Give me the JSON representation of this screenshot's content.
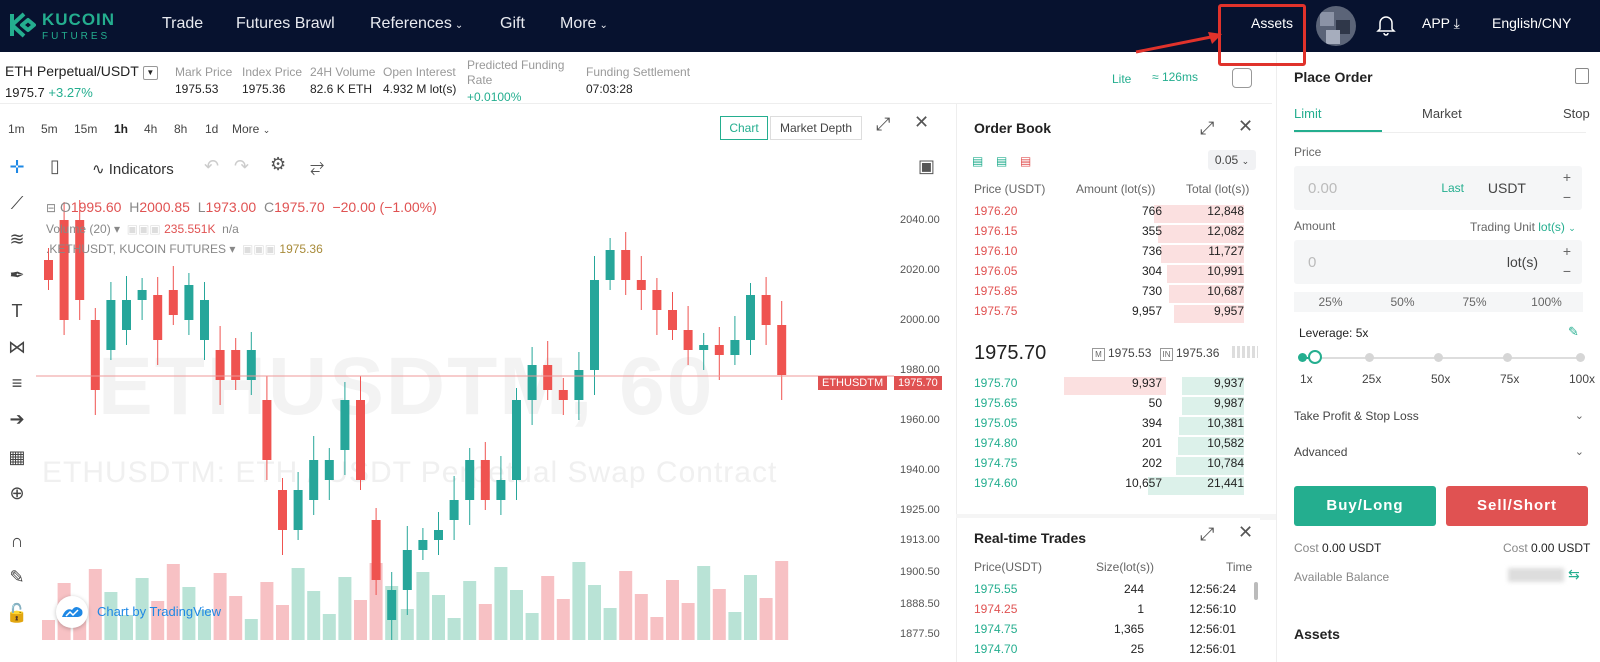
{
  "brand": {
    "line1": "KUCOIN",
    "line2": "FUTURES",
    "color": "#24ae8f"
  },
  "nav": [
    {
      "label": "Trade"
    },
    {
      "label": "Futures Brawl"
    },
    {
      "label": "References",
      "dropdown": true
    },
    {
      "label": "Gift"
    },
    {
      "label": "More",
      "dropdown": true
    }
  ],
  "top_right": {
    "assets": "Assets",
    "app": "APP",
    "lang": "English/CNY"
  },
  "ticker": {
    "symbol": "ETH Perpetual",
    "quote": "/USDT",
    "last": "1975.7",
    "change": "+3.27%",
    "stats": [
      {
        "label": "Mark Price",
        "value": "1975.53"
      },
      {
        "label": "Index Price",
        "value": "1975.36"
      },
      {
        "label": "24H Volume",
        "value": "82.6 K ETH"
      },
      {
        "label": "Open Interest",
        "value": "4.932 M lot(s)"
      },
      {
        "label": "Predicted Funding Rate",
        "value": "+0.0100%"
      },
      {
        "label": "Funding Settlement",
        "value": "07:03:28"
      }
    ],
    "mode": "Lite",
    "latency": "126ms"
  },
  "timeframes": [
    "1m",
    "5m",
    "15m",
    "1h",
    "4h",
    "8h",
    "1d",
    "More"
  ],
  "active_timeframe": "1h",
  "chart_tabs": {
    "chart": "Chart",
    "depth": "Market Depth"
  },
  "indicators_label": "Indicators",
  "ohlc": {
    "O": "1995.60",
    "H": "2000.85",
    "L": "1973.00",
    "C": "1975.70",
    "chg": "−20.00 (−1.00%)"
  },
  "volume_label": "Volume (20)",
  "volume_value": "235.551K",
  "volume_na": "n/a",
  "index_label": ".KETHUSDT, KUCOIN FUTURES",
  "index_value": "1975.36",
  "watermark": {
    "big": "ETHUSDTM, 60",
    "sub": "ETHUSDTM: ETH / USDT Perpetual Swap Contract"
  },
  "tv_credit": "Chart by TradingView",
  "price_label": "ETHUSDTM",
  "price_label_value": "1975.70",
  "y_axis": [
    "2040.00",
    "2020.00",
    "2000.00",
    "1980.00",
    "1960.00",
    "1940.00",
    "1925.00",
    "1913.00",
    "1900.50",
    "1888.50",
    "1877.50"
  ],
  "order_book": {
    "title": "Order Book",
    "decimal": "0.05",
    "headers": [
      "Price (USDT)",
      "Amount (lot(s))",
      "Total (lot(s))"
    ],
    "asks": [
      {
        "p": "1976.20",
        "a": "766",
        "t": "12,848",
        "d": 0.94
      },
      {
        "p": "1976.15",
        "a": "355",
        "t": "12,082",
        "d": 0.9
      },
      {
        "p": "1976.10",
        "a": "736",
        "t": "11,727",
        "d": 0.86
      },
      {
        "p": "1976.05",
        "a": "304",
        "t": "10,991",
        "d": 0.8
      },
      {
        "p": "1975.85",
        "a": "730",
        "t": "10,687",
        "d": 0.78
      },
      {
        "p": "1975.75",
        "a": "9,957",
        "t": "9,957",
        "d": 0.73
      }
    ],
    "mid": "1975.70",
    "mark": "1975.53",
    "index": "1975.36",
    "bids": [
      {
        "p": "1975.70",
        "a": "9,937",
        "t": "9,937",
        "d": 0.65,
        "amtbar": 0.85
      },
      {
        "p": "1975.65",
        "a": "50",
        "t": "9,987",
        "d": 0.65
      },
      {
        "p": "1975.05",
        "a": "394",
        "t": "10,381",
        "d": 0.68
      },
      {
        "p": "1974.80",
        "a": "201",
        "t": "10,582",
        "d": 0.69
      },
      {
        "p": "1974.75",
        "a": "202",
        "t": "10,784",
        "d": 0.71
      },
      {
        "p": "1974.60",
        "a": "10,657",
        "t": "21,441",
        "d": 1.0
      }
    ]
  },
  "trades": {
    "title": "Real-time Trades",
    "headers": [
      "Price(USDT)",
      "Size(lot(s))",
      "Time"
    ],
    "rows": [
      {
        "p": "1975.55",
        "s": "244",
        "t": "12:56:24",
        "side": "buy"
      },
      {
        "p": "1974.25",
        "s": "1",
        "t": "12:56:10",
        "side": "sell"
      },
      {
        "p": "1974.75",
        "s": "1,365",
        "t": "12:56:01",
        "side": "buy"
      },
      {
        "p": "1974.70",
        "s": "25",
        "t": "12:56:01",
        "side": "buy"
      }
    ]
  },
  "place_order": {
    "title": "Place Order",
    "tabs": [
      "Limit",
      "Market",
      "Stop"
    ],
    "price_label": "Price",
    "price_ph": "0.00",
    "last": "Last",
    "unit": "USDT",
    "amount_label": "Amount",
    "trading_unit": "Trading Unit",
    "lots": "lot(s)",
    "amount_ph": "0",
    "pcts": [
      "25%",
      "50%",
      "75%",
      "100%"
    ],
    "leverage": "Leverage: 5x",
    "lev_marks": [
      "1x",
      "25x",
      "50x",
      "75x",
      "100x"
    ],
    "tpsl": "Take Profit & Stop Loss",
    "advanced": "Advanced",
    "buy": "Buy/Long",
    "sell": "Sell/Short",
    "cost_label": "Cost",
    "cost_val": "0.00 USDT",
    "avail": "Available Balance",
    "assets": "Assets"
  }
}
